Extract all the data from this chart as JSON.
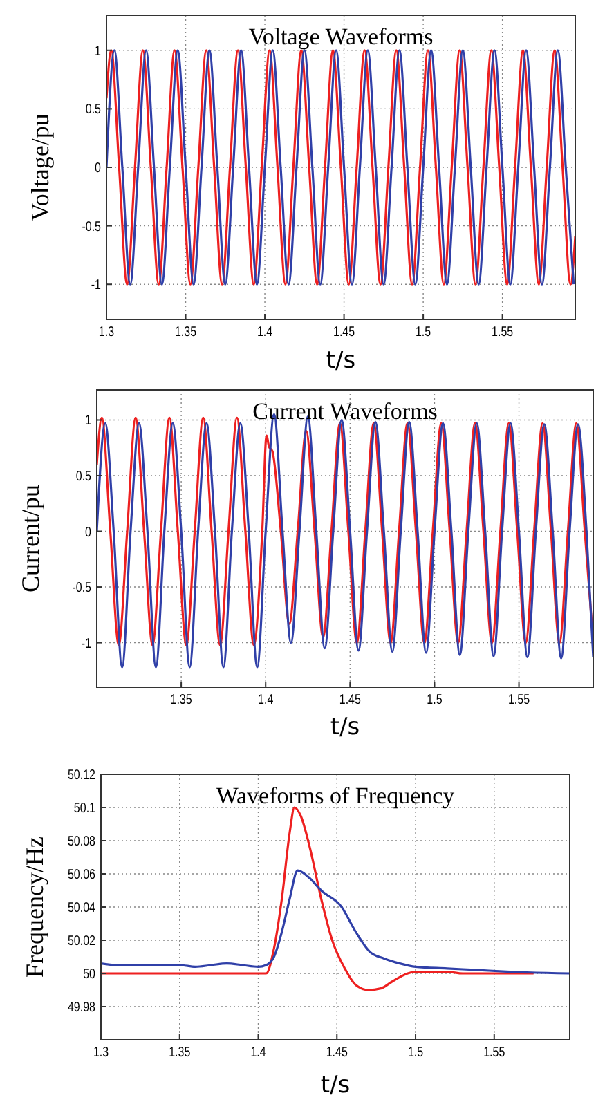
{
  "chart_data": [
    {
      "type": "line",
      "title": "Voltage Waveforms",
      "xlabel": "t/s",
      "ylabel": "Voltage/pu",
      "xlim": [
        1.3,
        1.596
      ],
      "xticks": [
        1.3,
        1.35,
        1.4,
        1.45,
        1.5,
        1.55
      ],
      "ylim": [
        -1.3,
        1.3
      ],
      "yticks": [
        -1,
        -0.5,
        0,
        0.5,
        1
      ],
      "grid": true,
      "series": [
        {
          "color": "#ee2020",
          "x": [
            1.3,
            1.303,
            1.308,
            1.313,
            1.318,
            1.323,
            1.328,
            1.333,
            1.338,
            1.343,
            1.348,
            1.353,
            1.358,
            1.363,
            1.368,
            1.373,
            1.378,
            1.383,
            1.388,
            1.393,
            1.398,
            1.403,
            1.408,
            1.413,
            1.418,
            1.423,
            1.428,
            1.433,
            1.438,
            1.443,
            1.448,
            1.453,
            1.458,
            1.463,
            1.468,
            1.473,
            1.478,
            1.483,
            1.488,
            1.493,
            1.498,
            1.503,
            1.508,
            1.513,
            1.518,
            1.523,
            1.528,
            1.533,
            1.538,
            1.543,
            1.548,
            1.553,
            1.558,
            1.563,
            1.568,
            1.573,
            1.578,
            1.583,
            1.588,
            1.593,
            1.596
          ],
          "values": [
            0.59,
            1,
            0,
            -1,
            0,
            1,
            0,
            -1,
            0,
            1,
            0,
            -1,
            0,
            1,
            0,
            -1,
            0,
            1,
            0,
            -1,
            0,
            1,
            0,
            -1,
            0,
            1,
            0,
            -1,
            0,
            1,
            0,
            -1,
            0,
            1,
            0,
            -1,
            0,
            1,
            0,
            -1,
            0,
            1,
            0,
            -1,
            0,
            1,
            0,
            -1,
            0,
            1,
            0,
            -1,
            0,
            1,
            0,
            -1,
            0,
            1,
            0,
            -1,
            -0.59
          ]
        },
        {
          "color": "#3040a8",
          "x": [
            1.3,
            1.305,
            1.31,
            1.315,
            1.32,
            1.325,
            1.33,
            1.335,
            1.34,
            1.345,
            1.35,
            1.355,
            1.36,
            1.365,
            1.37,
            1.375,
            1.38,
            1.385,
            1.39,
            1.395,
            1.4,
            1.405,
            1.41,
            1.415,
            1.42,
            1.425,
            1.43,
            1.435,
            1.44,
            1.445,
            1.45,
            1.455,
            1.46,
            1.465,
            1.47,
            1.475,
            1.48,
            1.485,
            1.49,
            1.495,
            1.5,
            1.505,
            1.51,
            1.515,
            1.52,
            1.525,
            1.53,
            1.535,
            1.54,
            1.545,
            1.55,
            1.555,
            1.56,
            1.565,
            1.57,
            1.575,
            1.58,
            1.585,
            1.59,
            1.595
          ],
          "values": [
            0,
            1,
            0,
            -1,
            0,
            1,
            0,
            -1,
            0,
            1,
            0,
            -1,
            0,
            1,
            0,
            -1,
            0,
            1,
            0,
            -1,
            0,
            1,
            0,
            -1,
            0,
            1,
            0,
            -1,
            0,
            1,
            0,
            -1,
            0,
            1,
            0,
            -1,
            0,
            1,
            0,
            -1,
            0,
            1,
            0,
            -1,
            0,
            1,
            0,
            -1,
            0,
            1,
            0,
            -1,
            0,
            1,
            0,
            -1,
            0,
            1,
            0,
            -1
          ]
        }
      ]
    },
    {
      "type": "line",
      "title": "Current Waveforms",
      "xlabel": "t/s",
      "ylabel": "Current/pu",
      "xlim": [
        1.3,
        1.594
      ],
      "xticks": [
        1.35,
        1.4,
        1.45,
        1.5,
        1.55
      ],
      "ylim": [
        -1.4,
        1.27
      ],
      "yticks": [
        -1,
        -0.5,
        0,
        0.5,
        1
      ],
      "grid": true,
      "series": [
        {
          "color": "#ee2020",
          "x": [
            1.3,
            1.303,
            1.308,
            1.313,
            1.318,
            1.323,
            1.328,
            1.333,
            1.338,
            1.343,
            1.348,
            1.353,
            1.358,
            1.363,
            1.368,
            1.373,
            1.378,
            1.383,
            1.388,
            1.393,
            1.398,
            1.4005,
            1.402,
            1.404,
            1.409,
            1.414,
            1.419,
            1.424,
            1.429,
            1.434,
            1.439,
            1.444,
            1.449,
            1.454,
            1.459,
            1.464,
            1.469,
            1.474,
            1.479,
            1.484,
            1.489,
            1.494,
            1.499,
            1.504,
            1.509,
            1.514,
            1.519,
            1.524,
            1.529,
            1.534,
            1.539,
            1.544,
            1.549,
            1.554,
            1.559,
            1.564,
            1.569,
            1.574,
            1.579,
            1.584,
            1.589,
            1.594
          ],
          "values": [
            0.6,
            1.02,
            0,
            -1.02,
            0,
            1.02,
            0,
            -1.02,
            0,
            1.02,
            0,
            -1.02,
            0,
            1.02,
            0,
            -1.02,
            0,
            1.02,
            0,
            -1.02,
            0,
            0.86,
            0.76,
            0.72,
            0,
            -0.83,
            0,
            0.9,
            0,
            -0.95,
            0,
            0.97,
            0,
            -1,
            0,
            0.97,
            0,
            -1,
            0,
            0.97,
            0,
            -1,
            0,
            0.97,
            0,
            -1,
            0,
            0.97,
            0,
            -1,
            0,
            0.97,
            0,
            -1,
            0,
            0.97,
            0,
            -1,
            0,
            0.97,
            0,
            -1
          ]
        },
        {
          "color": "#3040a8",
          "x": [
            1.3,
            1.305,
            1.31,
            1.315,
            1.32,
            1.325,
            1.33,
            1.335,
            1.34,
            1.345,
            1.35,
            1.355,
            1.36,
            1.365,
            1.37,
            1.375,
            1.38,
            1.385,
            1.39,
            1.395,
            1.4,
            1.405,
            1.41,
            1.415,
            1.42,
            1.425,
            1.43,
            1.435,
            1.44,
            1.445,
            1.45,
            1.455,
            1.46,
            1.465,
            1.47,
            1.475,
            1.48,
            1.485,
            1.49,
            1.495,
            1.5,
            1.505,
            1.51,
            1.515,
            1.52,
            1.525,
            1.53,
            1.535,
            1.54,
            1.545,
            1.55,
            1.555,
            1.56,
            1.565,
            1.57,
            1.575,
            1.58,
            1.585,
            1.59,
            1.594
          ],
          "values": [
            0,
            0.97,
            0,
            -1.22,
            0,
            0.97,
            0,
            -1.22,
            0,
            0.97,
            0,
            -1.22,
            0,
            0.97,
            0,
            -1.22,
            0,
            0.97,
            0,
            -1.22,
            0,
            1.05,
            0,
            -1,
            0,
            1.03,
            0,
            -1.05,
            0,
            1,
            0,
            -1.07,
            0,
            0.98,
            0,
            -1.08,
            0,
            0.98,
            0,
            -1.09,
            0,
            0.97,
            0,
            -1.11,
            0,
            0.97,
            0,
            -1.12,
            0,
            0.97,
            0,
            -1.13,
            0,
            0.96,
            0,
            -1.14,
            0,
            0.96,
            0,
            -1.13
          ]
        }
      ]
    },
    {
      "type": "line",
      "title": "Waveforms of Frequency",
      "xlabel": "t/s",
      "ylabel": "Frequency/Hz",
      "xlim": [
        1.3,
        1.598
      ],
      "xticks": [
        1.3,
        1.35,
        1.4,
        1.45,
        1.5,
        1.55
      ],
      "ylim": [
        49.96,
        50.12
      ],
      "yticks": [
        49.98,
        50,
        50.02,
        50.04,
        50.06,
        50.08,
        50.1,
        50.12
      ],
      "grid": true,
      "series": [
        {
          "color": "#ee2020",
          "x": [
            1.3,
            1.405,
            1.41,
            1.415,
            1.42,
            1.423,
            1.427,
            1.433,
            1.44,
            1.447,
            1.455,
            1.462,
            1.47,
            1.478,
            1.485,
            1.495,
            1.5,
            1.52,
            1.53,
            1.575
          ],
          "values": [
            50,
            50,
            50.015,
            50.045,
            50.085,
            50.1,
            50.095,
            50.075,
            50.045,
            50.02,
            50.003,
            49.993,
            49.99,
            49.991,
            49.995,
            50,
            50.001,
            50.001,
            50,
            50
          ]
        },
        {
          "color": "#3040a8",
          "x": [
            1.3,
            1.31,
            1.35,
            1.36,
            1.37,
            1.38,
            1.39,
            1.4,
            1.405,
            1.41,
            1.415,
            1.42,
            1.425,
            1.432,
            1.44,
            1.453,
            1.462,
            1.471,
            1.48,
            1.49,
            1.5,
            1.52,
            1.54,
            1.56,
            1.598
          ],
          "values": [
            50.006,
            50.005,
            50.005,
            50.004,
            50.005,
            50.006,
            50.005,
            50.004,
            50.005,
            50.01,
            50.025,
            50.045,
            50.062,
            50.058,
            50.05,
            50.04,
            50.025,
            50.013,
            50.009,
            50.006,
            50.004,
            50.003,
            50.002,
            50.001,
            50
          ]
        }
      ]
    }
  ]
}
